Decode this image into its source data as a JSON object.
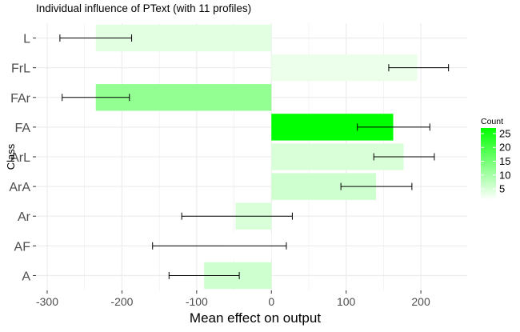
{
  "chart_data": {
    "type": "bar",
    "orientation": "horizontal",
    "title": "Individual influence of PText (with 11 profiles)",
    "xlabel": "Mean effect on output",
    "ylabel": "Class",
    "xlim": [
      -315,
      262
    ],
    "xticks": [
      -300,
      -200,
      -100,
      0,
      100,
      200
    ],
    "xtick_labels": [
      "-300",
      "-200",
      "-100",
      "0",
      "100",
      "200"
    ],
    "grid": true,
    "categories": [
      "A",
      "AF",
      "Ar",
      "ArA",
      "ArL",
      "FA",
      "FAr",
      "FrL",
      "L"
    ],
    "values": [
      -90,
      -65,
      -48,
      140,
      177,
      163,
      -235,
      195,
      -235
    ],
    "error_low": [
      -137,
      -159,
      -120,
      93,
      137,
      115,
      -280,
      157,
      -283
    ],
    "error_high": [
      -43,
      20,
      28,
      188,
      218,
      212,
      -190,
      237,
      -187
    ],
    "counts": [
      6,
      1,
      5,
      6,
      5,
      27,
      12,
      3,
      4
    ],
    "legend": {
      "title": "Count",
      "position": "right",
      "ticks": [
        5,
        10,
        15,
        20,
        25
      ],
      "tick_labels": [
        "5",
        "10",
        "15",
        "20",
        "25"
      ],
      "range": [
        1,
        27
      ],
      "color_low": "#ffffff",
      "color_high": "#00ff00"
    },
    "colors": {
      "grid": "#ebebeb",
      "errorbar": "#000000",
      "axis_text": "#4d4d4d"
    }
  }
}
